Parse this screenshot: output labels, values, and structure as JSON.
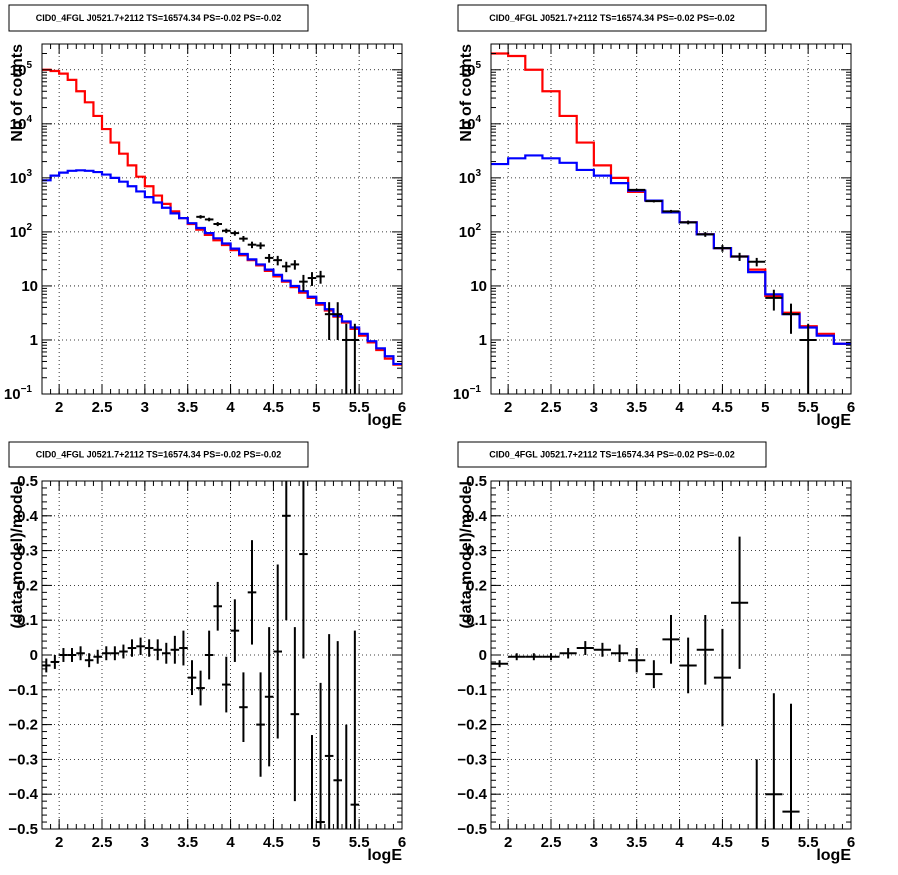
{
  "chart_data": [
    {
      "id": "tl",
      "type": "line",
      "title": "CID0_4FGL J0521.7+2112 TS=16574.34 PS=-0.02 PS=-0.02",
      "xlabel": "logE",
      "ylabel": "Nb of counts",
      "log_y": true,
      "xlim": [
        1.8,
        6.0
      ],
      "ylim": [
        0.1,
        300000
      ],
      "x_ticks": [
        {
          "v": 2,
          "label": "2"
        },
        {
          "v": 2.5,
          "label": "2.5"
        },
        {
          "v": 3,
          "label": "3"
        },
        {
          "v": 3.5,
          "label": "3.5"
        },
        {
          "v": 4,
          "label": "4"
        },
        {
          "v": 4.5,
          "label": "4.5"
        },
        {
          "v": 5,
          "label": "5"
        },
        {
          "v": 5.5,
          "label": "5.5"
        },
        {
          "v": 6,
          "label": "6"
        }
      ],
      "y_ticks": [
        {
          "v": 0.1,
          "label": "10",
          "sup": "−1"
        },
        {
          "v": 1,
          "label": "1"
        },
        {
          "v": 10,
          "label": "10"
        },
        {
          "v": 100,
          "label": "10",
          "sup": "2"
        },
        {
          "v": 1000,
          "label": "10",
          "sup": "3"
        },
        {
          "v": 10000,
          "label": "10",
          "sup": "4"
        },
        {
          "v": 100000,
          "label": "10",
          "sup": "5"
        }
      ],
      "grid": true,
      "series": [
        {
          "color": "#ff0000",
          "style": "step",
          "bin_width": 0.1,
          "x": [
            1.8,
            1.9,
            2.0,
            2.1,
            2.2,
            2.3,
            2.4,
            2.5,
            2.6,
            2.7,
            2.8,
            2.9,
            3.0,
            3.1,
            3.2,
            3.3,
            3.4,
            3.5,
            3.6,
            3.7,
            3.8,
            3.9,
            4.0,
            4.1,
            4.2,
            4.3,
            4.4,
            4.5,
            4.6,
            4.7,
            4.8,
            4.9,
            5.0,
            5.1,
            5.2,
            5.3,
            5.4,
            5.5,
            5.6,
            5.7,
            5.8,
            5.9
          ],
          "values": [
            100000,
            95000,
            85000,
            65000,
            40000,
            25000,
            14000,
            8000,
            4500,
            2800,
            1700,
            1050,
            700,
            470,
            330,
            240,
            180,
            140,
            110,
            88,
            70,
            57,
            46,
            37,
            30,
            24,
            19,
            15,
            12,
            9.5,
            7.5,
            6,
            4.5,
            3.5,
            2.7,
            2.1,
            1.6,
            1.2,
            0.9,
            0.65,
            0.45,
            0.35
          ]
        },
        {
          "color": "#0000ff",
          "style": "step",
          "bin_width": 0.1,
          "x": [
            1.8,
            1.9,
            2.0,
            2.1,
            2.2,
            2.3,
            2.4,
            2.5,
            2.6,
            2.7,
            2.8,
            2.9,
            3.0,
            3.1,
            3.2,
            3.3,
            3.4,
            3.5,
            3.6,
            3.7,
            3.8,
            3.9,
            4.0,
            4.1,
            4.2,
            4.3,
            4.4,
            4.5,
            4.6,
            4.7,
            4.8,
            4.9,
            5.0,
            5.1,
            5.2,
            5.3,
            5.4,
            5.5,
            5.6,
            5.7,
            5.8,
            5.9
          ],
          "values": [
            900,
            1100,
            1250,
            1350,
            1380,
            1350,
            1280,
            1150,
            1000,
            850,
            700,
            560,
            440,
            350,
            280,
            220,
            180,
            145,
            118,
            95,
            76,
            61,
            49,
            39,
            31,
            25,
            20,
            16,
            12.5,
            10,
            8,
            6.3,
            4.8,
            3.7,
            2.8,
            2.2,
            1.7,
            1.3,
            0.95,
            0.7,
            0.5,
            0.36
          ]
        },
        {
          "color": "#000000",
          "style": "errorbar",
          "x": [
            3.65,
            3.75,
            3.85,
            3.95,
            4.05,
            4.15,
            4.25,
            4.35,
            4.45,
            4.55,
            4.65,
            4.75,
            4.85,
            4.95,
            5.05,
            5.15,
            5.25,
            5.35,
            5.45
          ],
          "values": [
            190,
            170,
            140,
            105,
            95,
            75,
            58,
            56,
            33,
            30,
            23,
            25,
            12,
            14,
            15,
            3,
            3,
            1,
            1
          ],
          "errors": [
            14,
            13,
            12,
            10,
            10,
            9,
            8,
            8,
            6,
            6,
            5,
            5,
            4,
            4,
            4,
            2,
            2,
            1,
            1
          ]
        }
      ]
    },
    {
      "id": "tr",
      "type": "line",
      "title": "CID0_4FGL J0521.7+2112 TS=16574.34 PS=-0.02 PS=-0.02",
      "xlabel": "logE",
      "ylabel": "Nb of counts",
      "log_y": true,
      "xlim": [
        1.8,
        6.0
      ],
      "ylim": [
        0.1,
        300000
      ],
      "x_ticks": [
        {
          "v": 2,
          "label": "2"
        },
        {
          "v": 2.5,
          "label": "2.5"
        },
        {
          "v": 3,
          "label": "3"
        },
        {
          "v": 3.5,
          "label": "3.5"
        },
        {
          "v": 4,
          "label": "4"
        },
        {
          "v": 4.5,
          "label": "4.5"
        },
        {
          "v": 5,
          "label": "5"
        },
        {
          "v": 5.5,
          "label": "5.5"
        },
        {
          "v": 6,
          "label": "6"
        }
      ],
      "y_ticks": [
        {
          "v": 0.1,
          "label": "10",
          "sup": "−1"
        },
        {
          "v": 1,
          "label": "1"
        },
        {
          "v": 10,
          "label": "10"
        },
        {
          "v": 100,
          "label": "10",
          "sup": "2"
        },
        {
          "v": 1000,
          "label": "10",
          "sup": "3"
        },
        {
          "v": 10000,
          "label": "10",
          "sup": "4"
        },
        {
          "v": 100000,
          "label": "10",
          "sup": "5"
        }
      ],
      "grid": true,
      "series": [
        {
          "color": "#ff0000",
          "style": "step",
          "bin_width": 0.2,
          "x": [
            1.8,
            2.0,
            2.2,
            2.4,
            2.6,
            2.8,
            3.0,
            3.2,
            3.4,
            3.6,
            3.8,
            4.0,
            4.2,
            4.4,
            4.6,
            4.8,
            5.0,
            5.2,
            5.4,
            5.6,
            5.8
          ],
          "values": [
            200000,
            180000,
            100000,
            40000,
            14000,
            4500,
            1700,
            1000,
            550,
            380,
            230,
            150,
            90,
            50,
            35,
            20,
            6.5,
            3.2,
            1.8,
            1.3,
            0.85
          ]
        },
        {
          "color": "#0000ff",
          "style": "step",
          "bin_width": 0.2,
          "x": [
            1.8,
            2.0,
            2.2,
            2.4,
            2.6,
            2.8,
            3.0,
            3.2,
            3.4,
            3.6,
            3.8,
            4.0,
            4.2,
            4.4,
            4.6,
            4.8,
            5.0,
            5.2,
            5.4,
            5.6,
            5.8
          ],
          "values": [
            1800,
            2300,
            2600,
            2300,
            1900,
            1400,
            1100,
            800,
            580,
            380,
            230,
            150,
            90,
            50,
            35,
            18,
            7,
            3,
            1.7,
            1.2,
            0.85
          ]
        },
        {
          "color": "#000000",
          "style": "errorbar",
          "bin_width": 0.2,
          "x": [
            3.5,
            3.7,
            3.9,
            4.1,
            4.3,
            4.5,
            4.7,
            4.9,
            5.1,
            5.3,
            5.5
          ],
          "values": [
            600,
            370,
            240,
            150,
            90,
            50,
            35,
            28,
            6,
            3,
            1
          ],
          "errors": [
            25,
            19,
            15,
            12,
            9,
            7,
            6,
            5,
            2.5,
            1.7,
            1
          ]
        }
      ]
    },
    {
      "id": "bl",
      "type": "scatter",
      "title": "CID0_4FGL J0521.7+2112 TS=16574.34 PS=-0.02 PS=-0.02",
      "xlabel": "logE",
      "ylabel": "(data-model)/model",
      "log_y": false,
      "xlim": [
        1.8,
        6.0
      ],
      "ylim": [
        -0.5,
        0.5
      ],
      "x_ticks": [
        {
          "v": 2,
          "label": "2"
        },
        {
          "v": 2.5,
          "label": "2.5"
        },
        {
          "v": 3,
          "label": "3"
        },
        {
          "v": 3.5,
          "label": "3.5"
        },
        {
          "v": 4,
          "label": "4"
        },
        {
          "v": 4.5,
          "label": "4.5"
        },
        {
          "v": 5,
          "label": "5"
        },
        {
          "v": 5.5,
          "label": "5.5"
        },
        {
          "v": 6,
          "label": "6"
        }
      ],
      "y_ticks": [
        {
          "v": -0.5,
          "label": "−0.5"
        },
        {
          "v": -0.4,
          "label": "−0.4"
        },
        {
          "v": -0.3,
          "label": "−0.3"
        },
        {
          "v": -0.2,
          "label": "−0.2"
        },
        {
          "v": -0.1,
          "label": "−0.1"
        },
        {
          "v": 0,
          "label": "0"
        },
        {
          "v": 0.1,
          "label": "0.1"
        },
        {
          "v": 0.2,
          "label": "0.2"
        },
        {
          "v": 0.3,
          "label": "0.3"
        },
        {
          "v": 0.4,
          "label": "0.4"
        },
        {
          "v": 0.5,
          "label": "0.5"
        }
      ],
      "grid": true,
      "series": [
        {
          "color": "#000000",
          "style": "errorbar",
          "bin_width": 0.1,
          "x": [
            1.85,
            1.95,
            2.05,
            2.15,
            2.25,
            2.35,
            2.45,
            2.55,
            2.65,
            2.75,
            2.85,
            2.95,
            3.05,
            3.15,
            3.25,
            3.35,
            3.45,
            3.55,
            3.65,
            3.75,
            3.85,
            3.95,
            4.05,
            4.15,
            4.25,
            4.35,
            4.45,
            4.55,
            4.65,
            4.75,
            4.85,
            4.95,
            5.05,
            5.15,
            5.25,
            5.35,
            5.45
          ],
          "values": [
            -0.03,
            -0.02,
            0.0,
            0.0,
            0.005,
            -0.015,
            -0.005,
            0.005,
            0.005,
            0.01,
            0.02,
            0.025,
            0.02,
            0.015,
            0.005,
            0.015,
            0.02,
            -0.065,
            -0.095,
            0.0,
            0.14,
            -0.085,
            0.07,
            -0.15,
            0.18,
            -0.2,
            -0.12,
            0.01,
            0.4,
            -0.17,
            0.29,
            -0.63,
            -0.48,
            -0.29,
            -0.36,
            -0.7,
            -0.43
          ],
          "errors": [
            0.02,
            0.02,
            0.02,
            0.02,
            0.02,
            0.02,
            0.02,
            0.02,
            0.02,
            0.02,
            0.025,
            0.025,
            0.025,
            0.03,
            0.03,
            0.04,
            0.05,
            0.05,
            0.05,
            0.07,
            0.07,
            0.08,
            0.09,
            0.1,
            0.15,
            0.15,
            0.2,
            0.25,
            0.3,
            0.25,
            0.3,
            0.4,
            0.4,
            0.35,
            0.4,
            0.5,
            0.5
          ]
        }
      ]
    },
    {
      "id": "br",
      "type": "scatter",
      "title": "CID0_4FGL J0521.7+2112 TS=16574.34 PS=-0.02 PS=-0.02",
      "xlabel": "logE",
      "ylabel": "(data-model)/model",
      "log_y": false,
      "xlim": [
        1.8,
        6.0
      ],
      "ylim": [
        -0.5,
        0.5
      ],
      "x_ticks": [
        {
          "v": 2,
          "label": "2"
        },
        {
          "v": 2.5,
          "label": "2.5"
        },
        {
          "v": 3,
          "label": "3"
        },
        {
          "v": 3.5,
          "label": "3.5"
        },
        {
          "v": 4,
          "label": "4"
        },
        {
          "v": 4.5,
          "label": "4.5"
        },
        {
          "v": 5,
          "label": "5"
        },
        {
          "v": 5.5,
          "label": "5.5"
        },
        {
          "v": 6,
          "label": "6"
        }
      ],
      "y_ticks": [
        {
          "v": -0.5,
          "label": "−0.5"
        },
        {
          "v": -0.4,
          "label": "−0.4"
        },
        {
          "v": -0.3,
          "label": "−0.3"
        },
        {
          "v": -0.2,
          "label": "−0.2"
        },
        {
          "v": -0.1,
          "label": "−0.1"
        },
        {
          "v": 0,
          "label": "0"
        },
        {
          "v": 0.1,
          "label": "0.1"
        },
        {
          "v": 0.2,
          "label": "0.2"
        },
        {
          "v": 0.3,
          "label": "0.3"
        },
        {
          "v": 0.4,
          "label": "0.4"
        },
        {
          "v": 0.5,
          "label": "0.5"
        }
      ],
      "grid": true,
      "series": [
        {
          "color": "#000000",
          "style": "errorbar",
          "bin_width": 0.2,
          "x": [
            1.9,
            2.1,
            2.3,
            2.5,
            2.7,
            2.9,
            3.1,
            3.3,
            3.5,
            3.7,
            3.9,
            4.1,
            4.3,
            4.5,
            4.7,
            4.9,
            5.1,
            5.3
          ],
          "values": [
            -0.025,
            -0.005,
            -0.005,
            -0.005,
            0.005,
            0.02,
            0.015,
            0.005,
            -0.015,
            -0.055,
            0.045,
            -0.03,
            0.015,
            -0.065,
            0.15,
            -0.6,
            -0.4,
            -0.45
          ],
          "errors": [
            0.01,
            0.01,
            0.01,
            0.01,
            0.015,
            0.02,
            0.02,
            0.025,
            0.035,
            0.04,
            0.07,
            0.08,
            0.1,
            0.14,
            0.19,
            0.3,
            0.29,
            0.31
          ]
        }
      ]
    }
  ]
}
